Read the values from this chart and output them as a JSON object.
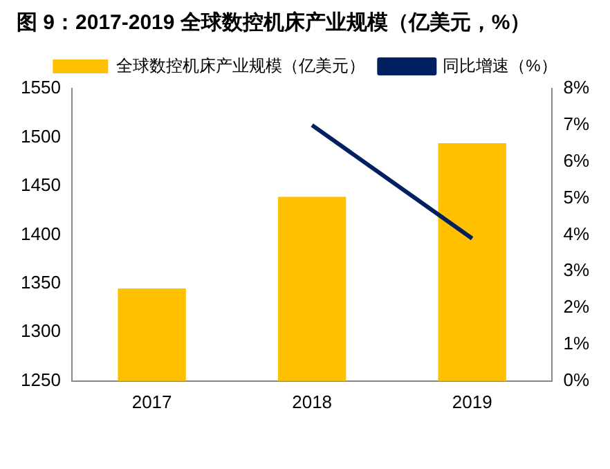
{
  "chart_data": {
    "type": "bar",
    "title": "图 9：2017-2019 全球数控机床产业规模（亿美元，%）",
    "categories": [
      "2017",
      "2018",
      "2019"
    ],
    "series": [
      {
        "name": "全球数控机床产业规模（亿美元）",
        "color": "#ffc000",
        "values": [
          1345,
          1439,
          1494
        ]
      },
      {
        "name": "同比增速（%）",
        "type": "line",
        "axis": "y2",
        "color": "#002060",
        "values": [
          null,
          7.0,
          3.9
        ]
      }
    ],
    "ylim": [
      1250,
      1550
    ],
    "yticks": [
      1250,
      1300,
      1350,
      1400,
      1450,
      1500,
      1550
    ],
    "y2lim": [
      0,
      8
    ],
    "y2ticks": [
      {
        "value": 0,
        "label": "0%"
      },
      {
        "value": 1,
        "label": "1%"
      },
      {
        "value": 2,
        "label": "2%"
      },
      {
        "value": 3,
        "label": "3%"
      },
      {
        "value": 4,
        "label": "4%"
      },
      {
        "value": 5,
        "label": "5%"
      },
      {
        "value": 6,
        "label": "6%"
      },
      {
        "value": 7,
        "label": "7%"
      },
      {
        "value": 8,
        "label": "8%"
      }
    ],
    "legend": "top",
    "grid": false,
    "marker": "none"
  }
}
